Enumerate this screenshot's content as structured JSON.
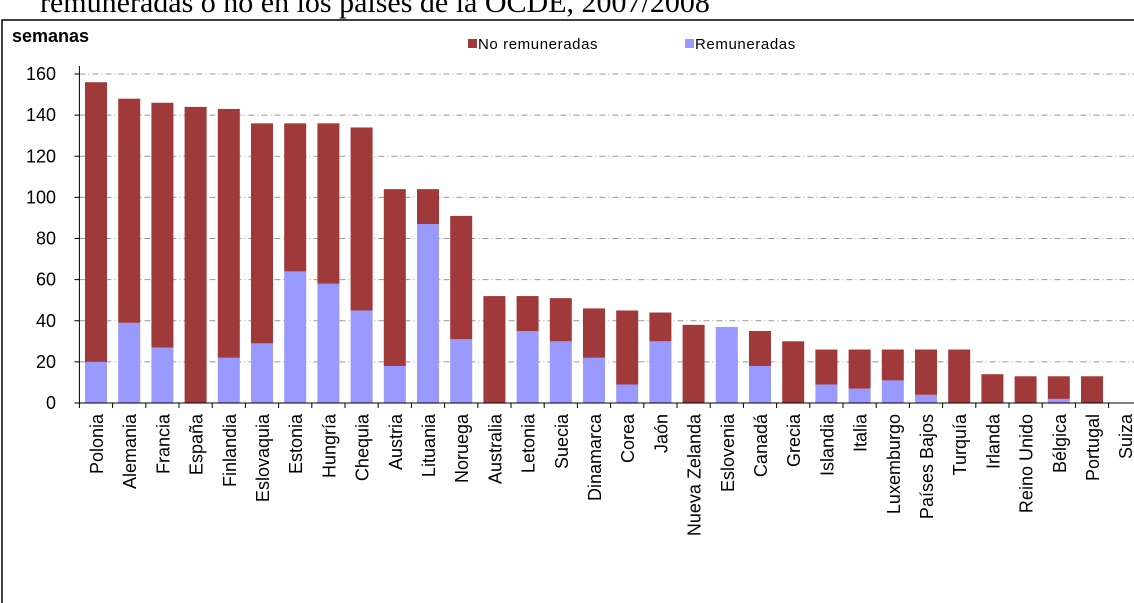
{
  "chart_data": {
    "type": "stacked_bar",
    "title": "remuneradas o no en los países de la OCDE, 2007/2008",
    "y_label": "semanas",
    "categories": [
      "Polonia",
      "Alemania",
      "Francia",
      "España",
      "Finlandia",
      "Eslovaquia",
      "Estonia",
      "Hungría",
      "Chequia",
      "Austria",
      "Lituania",
      "Noruega",
      "Australia",
      "Letonia",
      "Suecia",
      "Dinamarca",
      "Corea",
      "Jaón",
      "Nueva Zelanda",
      "Eslovenia",
      "Canadá",
      "Grecia",
      "Islandia",
      "Italia",
      "Luxemburgo",
      "Países Bajos",
      "Turquía",
      "Irlanda",
      "Reino Unido",
      "Bélgica",
      "Portugal",
      "Suiza"
    ],
    "series": [
      {
        "name": "No remuneradas",
        "color": "#a0393a",
        "values": [
          136,
          109,
          119,
          144,
          121,
          107,
          72,
          78,
          89,
          86,
          17,
          60,
          52,
          17,
          21,
          24,
          36,
          14,
          38,
          0,
          17,
          30,
          17,
          19,
          15,
          22,
          26,
          14,
          13,
          11,
          13,
          0
        ]
      },
      {
        "name": "Remuneradas",
        "color": "#9999ff",
        "values": [
          20,
          39,
          27,
          0,
          22,
          29,
          64,
          58,
          45,
          18,
          87,
          31,
          0,
          35,
          30,
          22,
          9,
          30,
          0,
          37,
          18,
          0,
          9,
          7,
          11,
          4,
          0,
          0,
          0,
          2,
          0,
          0
        ]
      }
    ],
    "ylim": [
      0,
      160
    ],
    "yticks": [
      0,
      20,
      40,
      60,
      80,
      100,
      120,
      140,
      160
    ],
    "grid": true
  }
}
